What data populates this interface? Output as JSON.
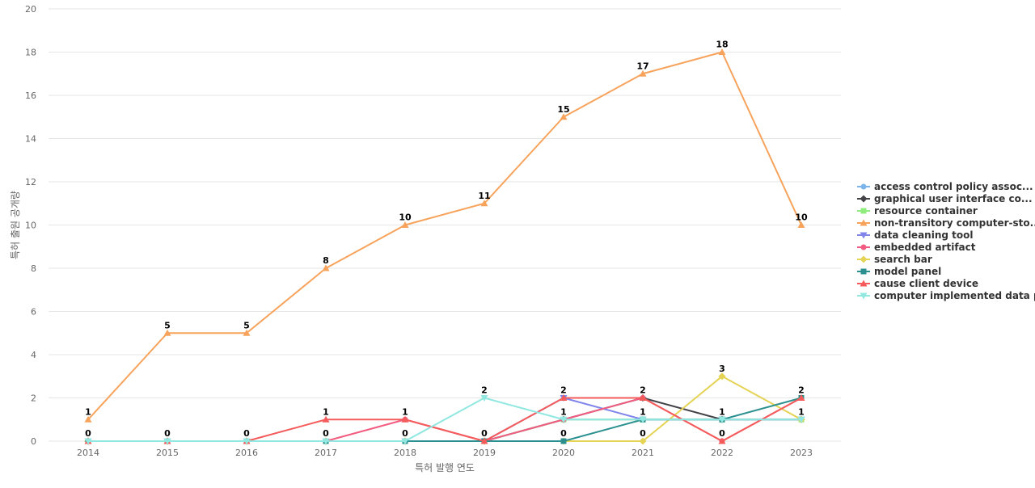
{
  "chart_data": {
    "type": "line",
    "title": "",
    "xlabel": "특허 발행 연도",
    "ylabel": "특허 출원 공개량",
    "ylim": [
      0,
      20
    ],
    "yticks": [
      0,
      2,
      4,
      6,
      8,
      10,
      12,
      14,
      16,
      18,
      20
    ],
    "grid": true,
    "legend_position": "right",
    "categories": [
      "2014",
      "2015",
      "2016",
      "2017",
      "2018",
      "2019",
      "2020",
      "2021",
      "2022",
      "2023"
    ],
    "series": [
      {
        "name": "access control policy assoc...",
        "color": "#7cb5ec",
        "marker": "circle",
        "values": [
          0,
          0,
          0,
          0,
          0,
          0,
          1,
          1,
          1,
          1
        ]
      },
      {
        "name": "graphical user interface co...",
        "color": "#434348",
        "marker": "diamond",
        "values": [
          0,
          0,
          0,
          0,
          0,
          0,
          1,
          2,
          1,
          1
        ]
      },
      {
        "name": "resource container",
        "color": "#90ed7d",
        "marker": "square",
        "values": [
          0,
          0,
          0,
          0,
          0,
          0,
          1,
          1,
          1,
          1
        ]
      },
      {
        "name": "non-transitory computer-sto...",
        "color": "#f7a35c",
        "marker": "triangle",
        "values": [
          1,
          5,
          5,
          8,
          10,
          11,
          15,
          17,
          18,
          10
        ]
      },
      {
        "name": "data cleaning tool",
        "color": "#8085e9",
        "marker": "triangle-down",
        "values": [
          0,
          0,
          0,
          0,
          0,
          0,
          2,
          1,
          1,
          1
        ]
      },
      {
        "name": "embedded artifact",
        "color": "#f15c80",
        "marker": "circle",
        "values": [
          0,
          0,
          0,
          0,
          1,
          0,
          1,
          2,
          0,
          2
        ]
      },
      {
        "name": "search bar",
        "color": "#e4d354",
        "marker": "diamond",
        "values": [
          0,
          0,
          0,
          0,
          0,
          0,
          0,
          0,
          3,
          1
        ]
      },
      {
        "name": "model panel",
        "color": "#2b908f",
        "marker": "square",
        "values": [
          0,
          0,
          0,
          0,
          0,
          0,
          0,
          1,
          1,
          2
        ]
      },
      {
        "name": "cause client device",
        "color": "#f45b5b",
        "marker": "triangle",
        "values": [
          0,
          0,
          0,
          1,
          1,
          0,
          2,
          2,
          0,
          2
        ]
      },
      {
        "name": "computer implemented data p...",
        "color": "#91e8e1",
        "marker": "triangle-down",
        "values": [
          0,
          0,
          0,
          0,
          0,
          2,
          1,
          1,
          1,
          1
        ]
      }
    ],
    "data_labels": [
      {
        "category": "2014",
        "text": "1",
        "y": 1
      },
      {
        "category": "2014",
        "text": "0",
        "y": 0
      },
      {
        "category": "2015",
        "text": "5",
        "y": 5
      },
      {
        "category": "2015",
        "text": "0",
        "y": 0
      },
      {
        "category": "2016",
        "text": "5",
        "y": 5
      },
      {
        "category": "2016",
        "text": "0",
        "y": 0
      },
      {
        "category": "2017",
        "text": "8",
        "y": 8
      },
      {
        "category": "2017",
        "text": "1",
        "y": 1
      },
      {
        "category": "2017",
        "text": "0",
        "y": 0
      },
      {
        "category": "2018",
        "text": "10",
        "y": 10
      },
      {
        "category": "2018",
        "text": "1",
        "y": 1
      },
      {
        "category": "2018",
        "text": "0",
        "y": 0
      },
      {
        "category": "2019",
        "text": "11",
        "y": 11
      },
      {
        "category": "2019",
        "text": "2",
        "y": 2
      },
      {
        "category": "2019",
        "text": "0",
        "y": 0
      },
      {
        "category": "2020",
        "text": "15",
        "y": 15
      },
      {
        "category": "2020",
        "text": "2",
        "y": 2
      },
      {
        "category": "2020",
        "text": "1",
        "y": 1
      },
      {
        "category": "2020",
        "text": "0",
        "y": 0
      },
      {
        "category": "2021",
        "text": "17",
        "y": 17
      },
      {
        "category": "2021",
        "text": "2",
        "y": 2
      },
      {
        "category": "2021",
        "text": "1",
        "y": 1
      },
      {
        "category": "2021",
        "text": "0",
        "y": 0
      },
      {
        "category": "2022",
        "text": "18",
        "y": 18
      },
      {
        "category": "2022",
        "text": "3",
        "y": 3
      },
      {
        "category": "2022",
        "text": "1",
        "y": 1
      },
      {
        "category": "2022",
        "text": "0",
        "y": 0
      },
      {
        "category": "2023",
        "text": "10",
        "y": 10
      },
      {
        "category": "2023",
        "text": "2",
        "y": 2
      },
      {
        "category": "2023",
        "text": "1",
        "y": 1
      }
    ]
  }
}
